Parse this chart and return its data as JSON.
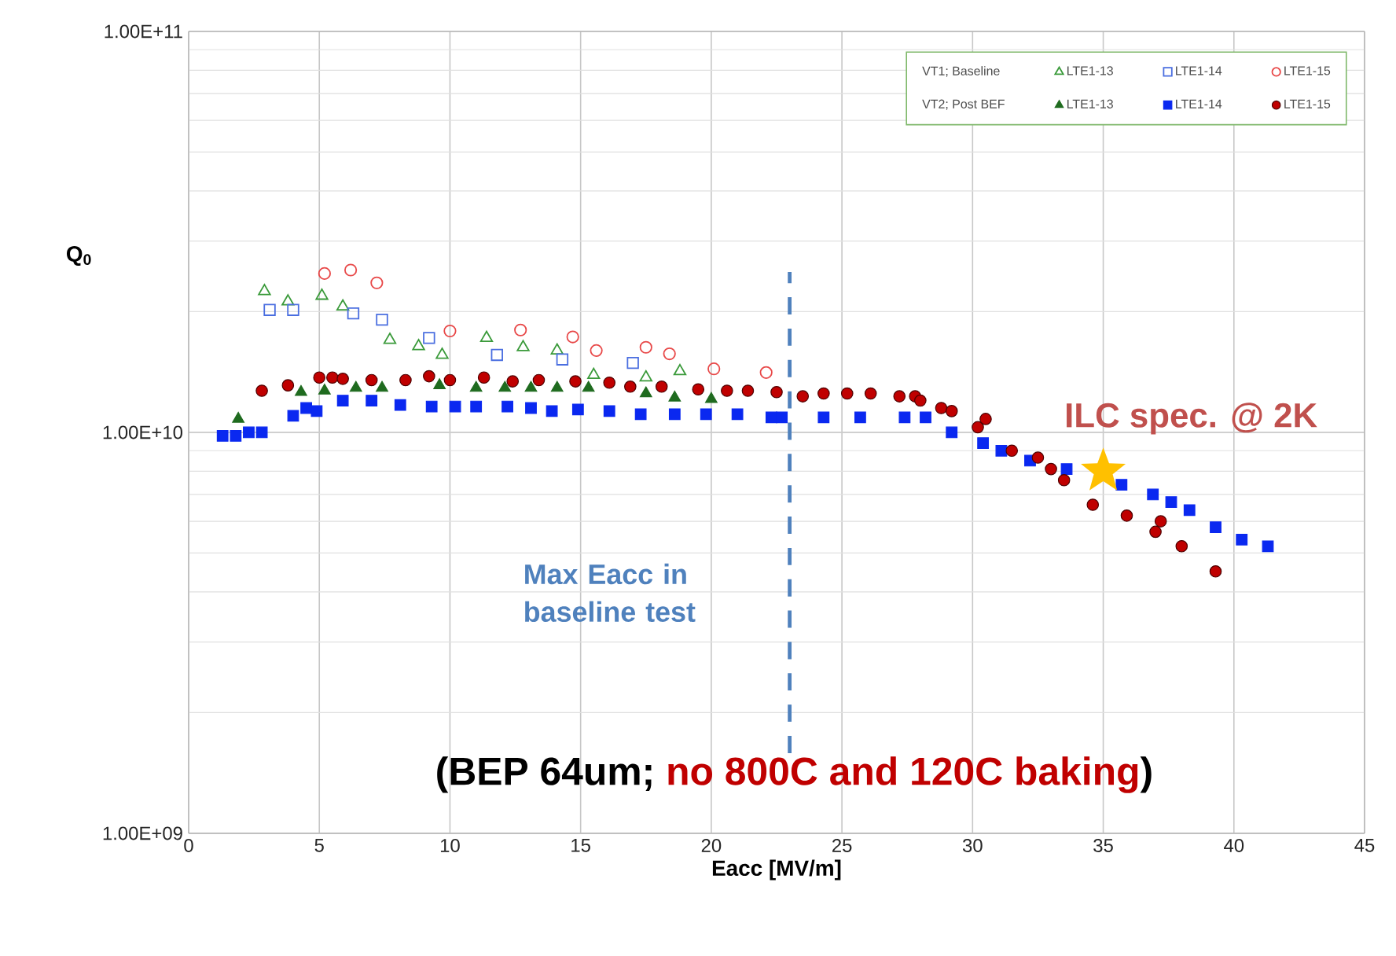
{
  "chart_data": {
    "type": "scatter",
    "xlabel": "Eacc [MV/m]",
    "ylabel": "Q$_{0}$",
    "xlim": [
      0,
      45
    ],
    "xticks": [
      0,
      5,
      10,
      15,
      20,
      25,
      30,
      35,
      40,
      45
    ],
    "ylim": [
      1000000000.0,
      100000000000.0
    ],
    "log": "y",
    "yticks": [
      {
        "value": 1000000000.0,
        "label": "1.00E+09"
      },
      {
        "value": 10000000000.0,
        "label": "1.00E+10"
      },
      {
        "value": 100000000000.0,
        "label": "1.00E+11"
      }
    ],
    "grid": true,
    "legend": "top right",
    "ref_lines": [
      {
        "axis": "x",
        "value": 23,
        "label": "Max Eacc in baseline test",
        "color": "#4f81bd",
        "line_style": "dashed"
      }
    ],
    "annotations": [
      {
        "text": "ILC spec. @ 2K",
        "x": 35,
        "y": 8000000000.0
      },
      "(BEP 64um;",
      "no 800C and 120C baking",
      ")",
      "VT1; Baseline",
      "VT2; Post BEF"
    ],
    "series": [
      {
        "name": "LTE1-13",
        "marker": "triangle",
        "color": "#3a9a3a",
        "x": [
          2.9,
          3.8,
          5.1,
          5.9,
          7.7,
          8.8,
          9.7,
          11.4,
          12.8,
          14.1,
          15.5,
          17.5,
          18.8
        ],
        "values": [
          22500000000.0,
          21200000000.0,
          21900000000.0,
          20600000000.0,
          17000000000.0,
          16400000000.0,
          15600000000.0,
          17200000000.0,
          16300000000.0,
          16000000000.0,
          13900000000.0,
          13700000000.0,
          14200000000.0
        ]
      },
      {
        "name": "LTE1-14",
        "marker": "square",
        "color": "#4a6ee0",
        "x": [
          3.1,
          4.0,
          6.3,
          7.4,
          9.2,
          11.8,
          14.3,
          17.0
        ],
        "values": [
          20200000000.0,
          20200000000.0,
          19800000000.0,
          19100000000.0,
          17200000000.0,
          15600000000.0,
          15200000000.0,
          14900000000.0
        ]
      },
      {
        "name": "LTE1-15",
        "marker": "circle",
        "color": "#e84848",
        "x": [
          5.2,
          6.2,
          7.2,
          10.0,
          12.7,
          14.7,
          15.6,
          17.5,
          18.4,
          20.1,
          22.1
        ],
        "values": [
          24900000000.0,
          25400000000.0,
          23600000000.0,
          17900000000.0,
          18000000000.0,
          17300000000.0,
          16000000000.0,
          16300000000.0,
          15700000000.0,
          14400000000.0,
          14100000000.0
        ]
      },
      {
        "name": "LTE1-13",
        "marker": "triangle",
        "color": "#1f6b1f",
        "x": [
          1.9,
          4.3,
          5.2,
          6.4,
          7.4,
          9.6,
          11.0,
          12.1,
          13.1,
          14.1,
          15.3,
          17.5,
          18.6,
          20.0
        ],
        "values": [
          10800000000.0,
          12600000000.0,
          12700000000.0,
          12900000000.0,
          12900000000.0,
          13100000000.0,
          12900000000.0,
          12900000000.0,
          12900000000.0,
          12900000000.0,
          12900000000.0,
          12500000000.0,
          12200000000.0,
          12100000000.0
        ]
      },
      {
        "name": "LTE1-14",
        "marker": "square",
        "color": "#0a28f0",
        "x": [
          1.3,
          1.8,
          2.3,
          2.8,
          4.0,
          4.5,
          4.9,
          5.9,
          7.0,
          8.1,
          9.3,
          10.2,
          11.0,
          12.2,
          13.1,
          13.9,
          14.9,
          16.1,
          17.3,
          18.6,
          19.8,
          21.0,
          22.3,
          22.7,
          24.3,
          25.7,
          27.4,
          28.2,
          29.2,
          30.4,
          31.1,
          32.2,
          33.6,
          34.6,
          35.7,
          36.9,
          37.6,
          38.3,
          39.3,
          40.3,
          41.3
        ],
        "values": [
          9800000000.0,
          9800000000.0,
          10000000000.0,
          10000000000.0,
          11000000000.0,
          11500000000.0,
          11300000000.0,
          12000000000.0,
          12000000000.0,
          11700000000.0,
          11600000000.0,
          11600000000.0,
          11600000000.0,
          11600000000.0,
          11500000000.0,
          11300000000.0,
          11400000000.0,
          11300000000.0,
          11100000000.0,
          11100000000.0,
          11100000000.0,
          11100000000.0,
          10900000000.0,
          10900000000.0,
          10900000000.0,
          10900000000.0,
          10900000000.0,
          10900000000.0,
          10000000000.0,
          9400000000.0,
          9000000000.0,
          8500000000.0,
          8100000000.0,
          null,
          7400000000.0,
          7000000000.0,
          6700000000.0,
          6400000000.0,
          5800000000.0,
          5400000000.0,
          5200000000.0
        ]
      },
      {
        "name": "LTE1-15",
        "marker": "circle",
        "color": "#c00000",
        "x": [
          2.8,
          3.8,
          5.0,
          5.5,
          5.9,
          7.0,
          8.3,
          9.2,
          10.0,
          11.3,
          12.4,
          13.4,
          14.8,
          16.1,
          16.9,
          18.1,
          19.5,
          20.6,
          21.4,
          22.5,
          23.5,
          24.3,
          25.2,
          26.1,
          27.2,
          27.8,
          28.0,
          28.8,
          29.2,
          30.2,
          30.5,
          31.5,
          32.5,
          33.0,
          33.5,
          34.6,
          35.9,
          37.0,
          37.2,
          38.0,
          39.3
        ],
        "values": [
          12700000000.0,
          13100000000.0,
          13700000000.0,
          13700000000.0,
          13600000000.0,
          13500000000.0,
          13500000000.0,
          13800000000.0,
          13500000000.0,
          13700000000.0,
          13400000000.0,
          13500000000.0,
          13400000000.0,
          13300000000.0,
          13000000000.0,
          13000000000.0,
          12800000000.0,
          12700000000.0,
          12700000000.0,
          12600000000.0,
          12300000000.0,
          12500000000.0,
          12500000000.0,
          12500000000.0,
          12300000000.0,
          12300000000.0,
          12000000000.0,
          11500000000.0,
          11300000000.0,
          10300000000.0,
          10800000000.0,
          9000000000.0,
          8650000000.0,
          8100000000.0,
          7600000000.0,
          6600000000.0,
          6200000000.0,
          5650000000.0,
          6000000000.0,
          5200000000.0,
          4500000000.0
        ]
      },
      {
        "marker": "star",
        "color": "#ffc000",
        "x": [
          35
        ],
        "values": [
          8000000000.0
        ]
      }
    ]
  }
}
